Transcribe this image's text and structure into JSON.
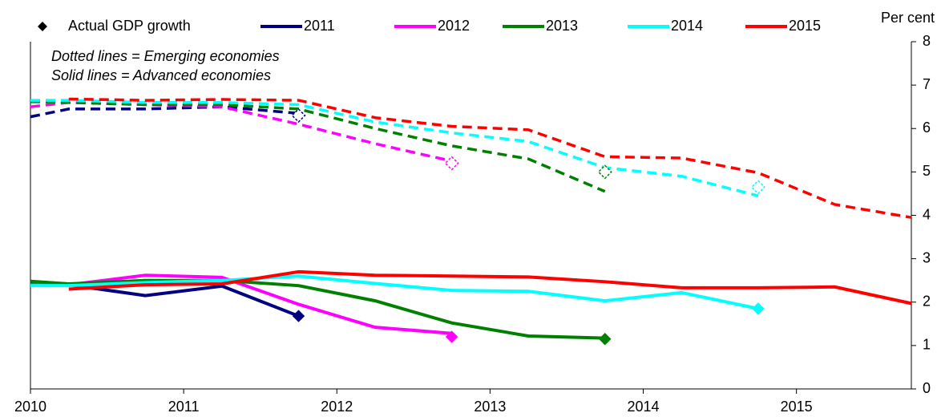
{
  "chart_data": {
    "type": "line",
    "y_label": "Per cent",
    "annotations": [
      "Dotted lines = Emerging economies",
      "Solid lines = Advanced economies"
    ],
    "x": [
      2010,
      2010.25,
      2010.75,
      2011.25,
      2011.75,
      2012.25,
      2012.75,
      2013.25,
      2013.75,
      2014.25,
      2014.75,
      2015.25,
      2015.75
    ],
    "xlim": [
      2010,
      2015.75
    ],
    "xticks": [
      2010,
      2011,
      2012,
      2013,
      2014,
      2015
    ],
    "ylim": [
      0,
      8
    ],
    "yticks": [
      0,
      1,
      2,
      3,
      4,
      5,
      6,
      7,
      8
    ],
    "series": [
      {
        "name": "2011",
        "color": "#000080",
        "advanced": [
          2.45,
          2.4,
          2.15,
          2.37,
          1.68,
          null,
          null,
          null,
          null,
          null,
          null,
          null,
          null
        ],
        "emerging": [
          6.27,
          6.45,
          6.45,
          6.5,
          6.35,
          null,
          null,
          null,
          null,
          null,
          null,
          null,
          null
        ]
      },
      {
        "name": "2012",
        "color": "#ff00ff",
        "advanced": [
          2.4,
          2.4,
          2.62,
          2.57,
          1.95,
          1.42,
          1.28,
          null,
          null,
          null,
          null,
          null,
          null
        ],
        "emerging": [
          6.5,
          6.6,
          6.55,
          6.5,
          6.1,
          5.65,
          5.25,
          null,
          null,
          null,
          null,
          null,
          null
        ]
      },
      {
        "name": "2013",
        "color": "#008000",
        "advanced": [
          2.48,
          2.42,
          2.5,
          2.5,
          2.38,
          2.03,
          1.52,
          1.22,
          1.17,
          null,
          null,
          null,
          null
        ],
        "emerging": [
          6.62,
          6.6,
          6.55,
          6.55,
          6.45,
          6.0,
          5.6,
          5.3,
          4.55,
          null,
          null,
          null,
          null
        ]
      },
      {
        "name": "2014",
        "color": "#00ffff",
        "advanced": [
          2.38,
          2.38,
          2.45,
          2.5,
          2.6,
          2.43,
          2.27,
          2.25,
          2.03,
          2.22,
          1.85,
          null,
          null
        ],
        "emerging": [
          6.65,
          6.65,
          6.6,
          6.6,
          6.55,
          6.15,
          5.9,
          5.7,
          5.1,
          4.9,
          4.45,
          null,
          null
        ]
      },
      {
        "name": "2015",
        "color": "#ff0000",
        "advanced": [
          null,
          2.3,
          2.4,
          2.42,
          2.7,
          2.62,
          2.6,
          2.58,
          2.47,
          2.33,
          2.33,
          2.35,
          1.97
        ],
        "emerging": [
          null,
          6.68,
          6.65,
          6.67,
          6.65,
          6.25,
          6.05,
          5.97,
          5.35,
          5.32,
          4.98,
          4.25,
          3.95
        ]
      }
    ],
    "actual": {
      "name": "Actual GDP growth",
      "color": "#000000",
      "x": [
        2011.75,
        2012.75,
        2013.75,
        2014.75
      ],
      "advanced": [
        1.68,
        1.2,
        1.15,
        1.85
      ],
      "emerging": [
        6.3,
        5.2,
        5.0,
        4.65
      ]
    }
  }
}
